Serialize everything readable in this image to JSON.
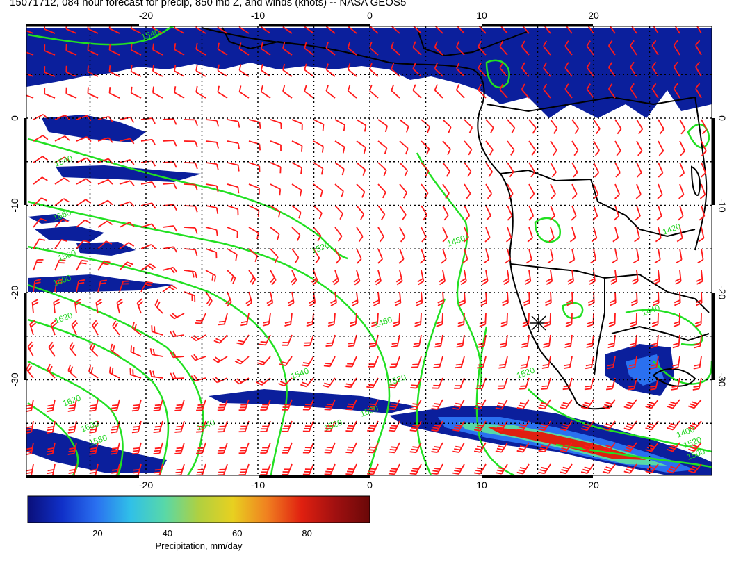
{
  "title": "15071712, 084 hour forecast for precip, 850 mb Z, and winds (knots) -- NASA GEOS5",
  "colors": {
    "precip_light": "#0b1f9c",
    "precip_mid": "#2a5be0",
    "contour": "#22e022",
    "wind": "#ff1a1a",
    "coast": "#000000"
  },
  "axes": {
    "lon_ticks": [
      "-20",
      "-10",
      "0",
      "10",
      "20"
    ],
    "lat_ticks": [
      "0",
      "-10",
      "-20",
      "-30"
    ]
  },
  "contour_labels": [
    "1540",
    "1540",
    "1560",
    "1580",
    "1600",
    "1620",
    "1620",
    "1600",
    "1580",
    "1540",
    "1520",
    "1500",
    "1480",
    "1460",
    "1440",
    "1420",
    "1400",
    "1520",
    "1500",
    "1520",
    "1540",
    "1520",
    "1520"
  ],
  "colorbar": {
    "label": "Precipitation, mm/day",
    "ticks": [
      "20",
      "40",
      "60",
      "80"
    ],
    "stops": [
      "#0a0f7a",
      "#1030c8",
      "#2a70f0",
      "#30c0e8",
      "#58d8a8",
      "#b0d040",
      "#e8d020",
      "#f08020",
      "#e02010",
      "#a01010",
      "#6a0808"
    ]
  }
}
